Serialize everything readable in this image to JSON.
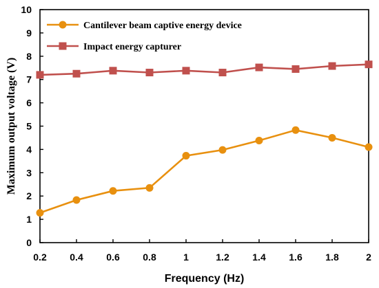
{
  "chart_data": {
    "type": "line",
    "title": "",
    "xlabel": "Frequency  (Hz)",
    "ylabel": "Maximum output voltage (V)",
    "x": [
      0.2,
      0.4,
      0.6,
      0.8,
      1.0,
      1.2,
      1.4,
      1.6,
      1.8,
      2.0
    ],
    "x_tick_labels": [
      "0.2",
      "0.4",
      "0.6",
      "0.8",
      "1",
      "1.2",
      "1.4",
      "1.6",
      "1.8",
      "2"
    ],
    "y_tick_labels": [
      "0",
      "1",
      "2",
      "3",
      "4",
      "5",
      "6",
      "7",
      "8",
      "9",
      "10"
    ],
    "xlim": [
      0.2,
      2.0
    ],
    "ylim": [
      0,
      10
    ],
    "grid": false,
    "legend_position": "top-left",
    "series": [
      {
        "name": "Cantilever beam captive energy device",
        "marker": "circle",
        "color": "#E8900F",
        "values": [
          1.28,
          1.83,
          2.22,
          2.35,
          3.73,
          3.98,
          4.38,
          4.83,
          4.5,
          4.1
        ]
      },
      {
        "name": "Impact energy capturer",
        "marker": "square",
        "color": "#C0504D",
        "values": [
          7.2,
          7.25,
          7.38,
          7.3,
          7.38,
          7.3,
          7.52,
          7.45,
          7.58,
          7.65
        ]
      }
    ]
  }
}
